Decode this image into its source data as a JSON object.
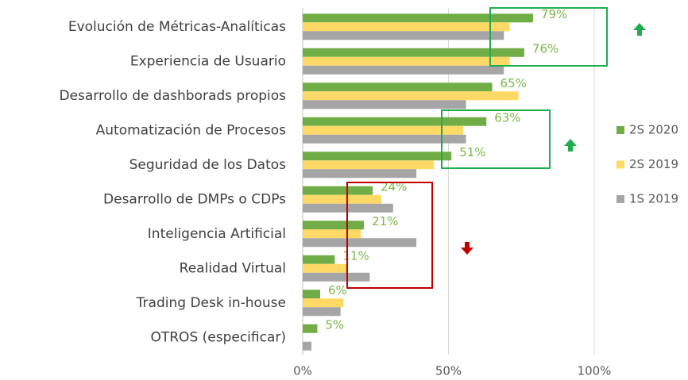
{
  "chart_data": {
    "type": "hbar",
    "categories": [
      "Evolución de Métricas-Analíticas",
      "Experiencia de Usuario",
      "Desarrollo de dashborads propios",
      "Automatización de Procesos",
      "Seguridad de los Datos",
      "Desarrollo de DMPs o CDPs",
      "Inteligencia Artificial",
      "Realidad Virtual",
      "Trading Desk in-house",
      "OTROS (especificar)"
    ],
    "series": [
      {
        "name": "2S 2020",
        "color": "#70ad47",
        "values": [
          79,
          76,
          65,
          63,
          51,
          24,
          21,
          11,
          6,
          5
        ],
        "value_labels": [
          "79%",
          "76%",
          "65%",
          "63%",
          "51%",
          "24%",
          "21%",
          "11%",
          "6%",
          "5%"
        ]
      },
      {
        "name": "2S 2019",
        "color": "#ffd966",
        "values": [
          71,
          71,
          74,
          55,
          45,
          27,
          20,
          15,
          14,
          0
        ]
      },
      {
        "name": "1S 2019",
        "color": "#a5a5a5",
        "values": [
          69,
          69,
          56,
          56,
          39,
          31,
          39,
          23,
          13,
          3
        ]
      }
    ],
    "xlim": [
      0,
      100
    ],
    "xticks": [
      {
        "value": 0,
        "label": "0%"
      },
      {
        "value": 50,
        "label": "50%"
      },
      {
        "value": 100,
        "label": "100%"
      }
    ],
    "grid": true,
    "legend": "right"
  }
}
